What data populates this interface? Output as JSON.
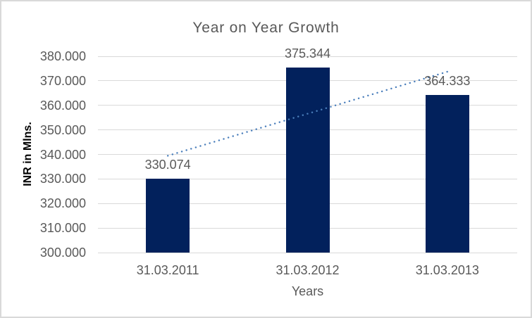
{
  "chart_data": {
    "type": "bar",
    "title": "Year on Year Growth",
    "xlabel": "Years",
    "ylabel": "INR in Mlns.",
    "categories": [
      "31.03.2011",
      "31.03.2012",
      "31.03.2013"
    ],
    "values": [
      330.074,
      375.344,
      364.333
    ],
    "value_labels": [
      "330.074",
      "375.344",
      "364.333"
    ],
    "ylim": [
      300,
      380
    ],
    "ytick_interval": 10,
    "ytick_labels_top_to_bottom": [
      "380.000",
      "370.000",
      "360.000",
      "350.000",
      "340.000",
      "330.000",
      "320.000",
      "310.000",
      "300.000"
    ],
    "grid": true,
    "legend_position": "none",
    "trendline": {
      "type": "linear",
      "dash_style": "dotted",
      "start_value": 339.454,
      "end_value": 373.713
    },
    "colors": {
      "bar": "#02215C",
      "trendline": "#4A7EBB",
      "text": "#595959",
      "axis_title_text": "#000000",
      "gridline": "#D9D9D9",
      "border": "#D9D9D9",
      "background": "#FFFFFF"
    }
  }
}
